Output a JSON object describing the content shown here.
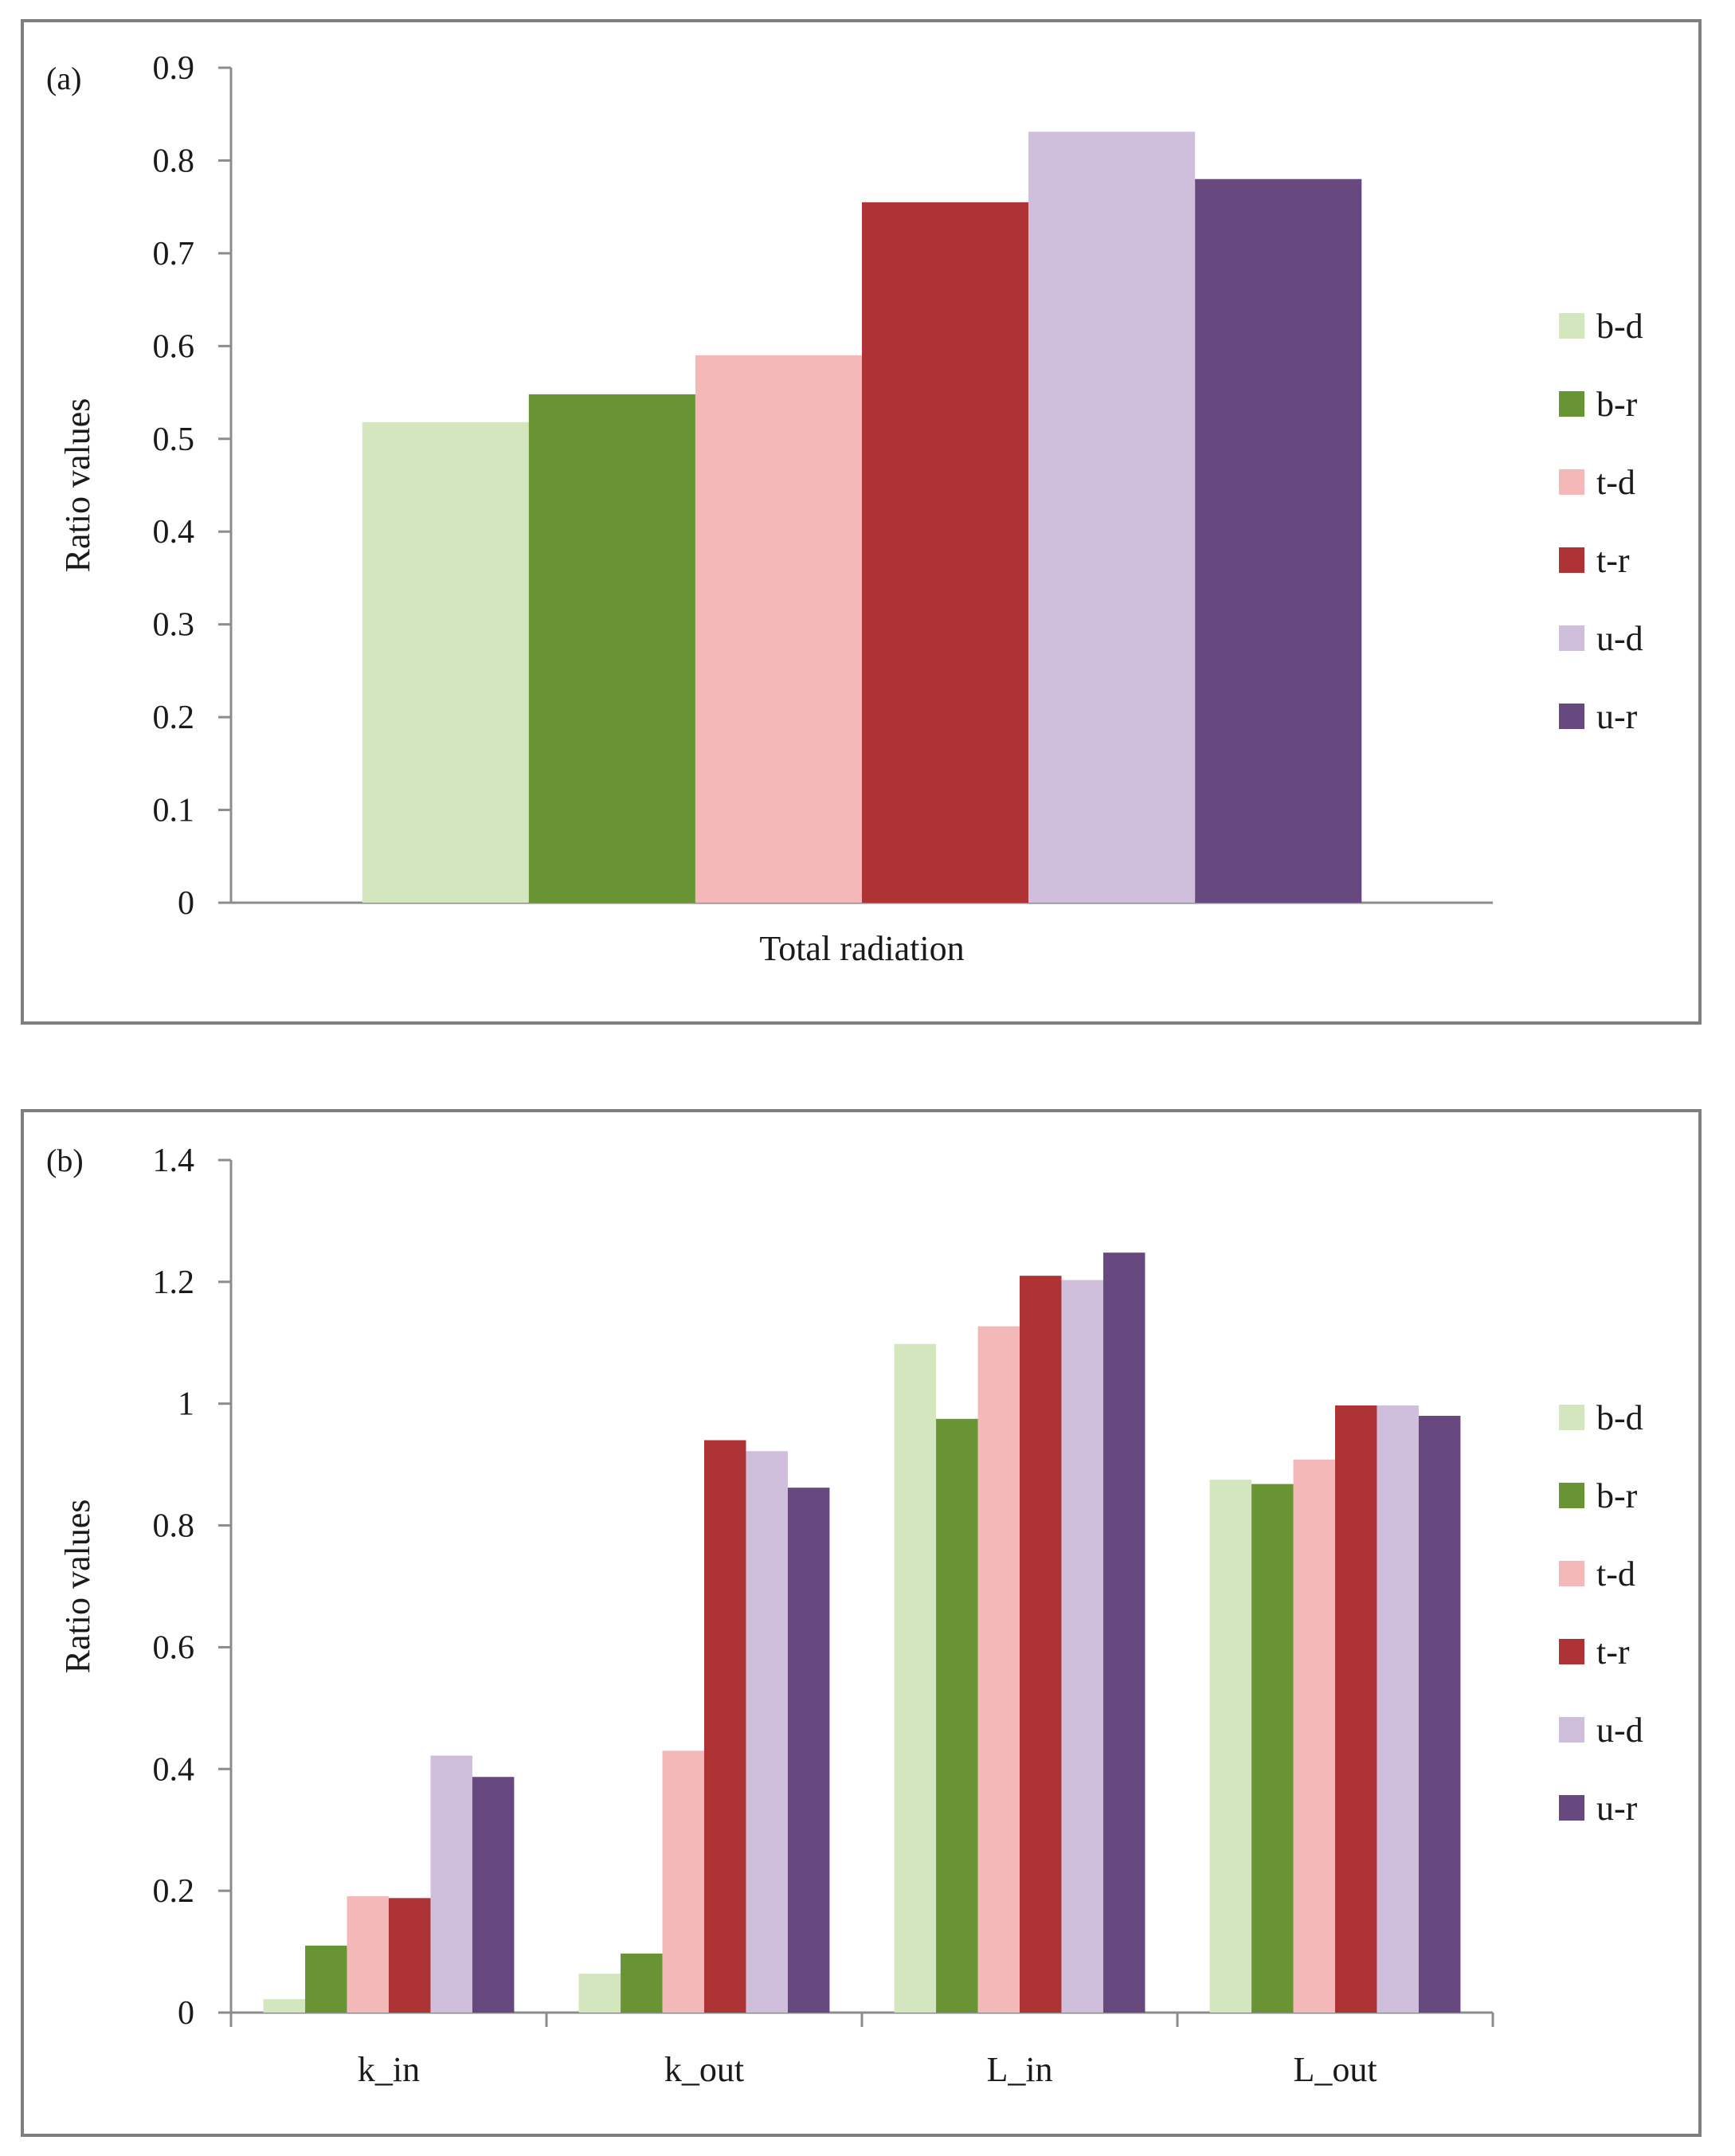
{
  "series_colors": {
    "b-d": "#d4e6bd",
    "b-r": "#699434",
    "t-d": "#f5b8b8",
    "t-r": "#ad3335",
    "u-d": "#d0bfdc",
    "u-r": "#67487f"
  },
  "chart_data": [
    {
      "type": "bar",
      "panel_label": "(a)",
      "title": "",
      "xlabel": "",
      "ylabel": "Ratio values",
      "ylim": [
        0,
        0.9
      ],
      "yticks": [
        "0",
        "0.1",
        "0.2",
        "0.3",
        "0.4",
        "0.5",
        "0.6",
        "0.7",
        "0.8",
        "0.9"
      ],
      "categories": [
        "Total radiation"
      ],
      "legend": [
        "b-d",
        "b-r",
        "t-d",
        "t-r",
        "u-d",
        "u-r"
      ],
      "legend_position": "right",
      "series": [
        {
          "name": "b-d",
          "values": [
            0.518
          ]
        },
        {
          "name": "b-r",
          "values": [
            0.548
          ]
        },
        {
          "name": "t-d",
          "values": [
            0.59
          ]
        },
        {
          "name": "t-r",
          "values": [
            0.755
          ]
        },
        {
          "name": "u-d",
          "values": [
            0.831
          ]
        },
        {
          "name": "u-r",
          "values": [
            0.78
          ]
        }
      ]
    },
    {
      "type": "bar",
      "panel_label": "(b)",
      "title": "",
      "xlabel": "",
      "ylabel": "Ratio values",
      "ylim": [
        0,
        1.4
      ],
      "yticks": [
        "0",
        "0.2",
        "0.4",
        "0.6",
        "0.8",
        "1",
        "1.2",
        "1.4"
      ],
      "categories": [
        "k_in",
        "k_out",
        "L_in",
        "L_out"
      ],
      "legend": [
        "b-d",
        "b-r",
        "t-d",
        "t-r",
        "u-d",
        "u-r"
      ],
      "legend_position": "right",
      "series": [
        {
          "name": "b-d",
          "values": [
            0.022,
            0.064,
            1.098,
            0.875
          ]
        },
        {
          "name": "b-r",
          "values": [
            0.11,
            0.097,
            0.975,
            0.868
          ]
        },
        {
          "name": "t-d",
          "values": [
            0.191,
            0.43,
            1.127,
            0.908
          ]
        },
        {
          "name": "t-r",
          "values": [
            0.188,
            0.94,
            1.21,
            0.997
          ]
        },
        {
          "name": "u-d",
          "values": [
            0.422,
            0.922,
            1.203,
            0.997
          ]
        },
        {
          "name": "u-r",
          "values": [
            0.387,
            0.862,
            1.248,
            0.98
          ]
        }
      ]
    }
  ]
}
